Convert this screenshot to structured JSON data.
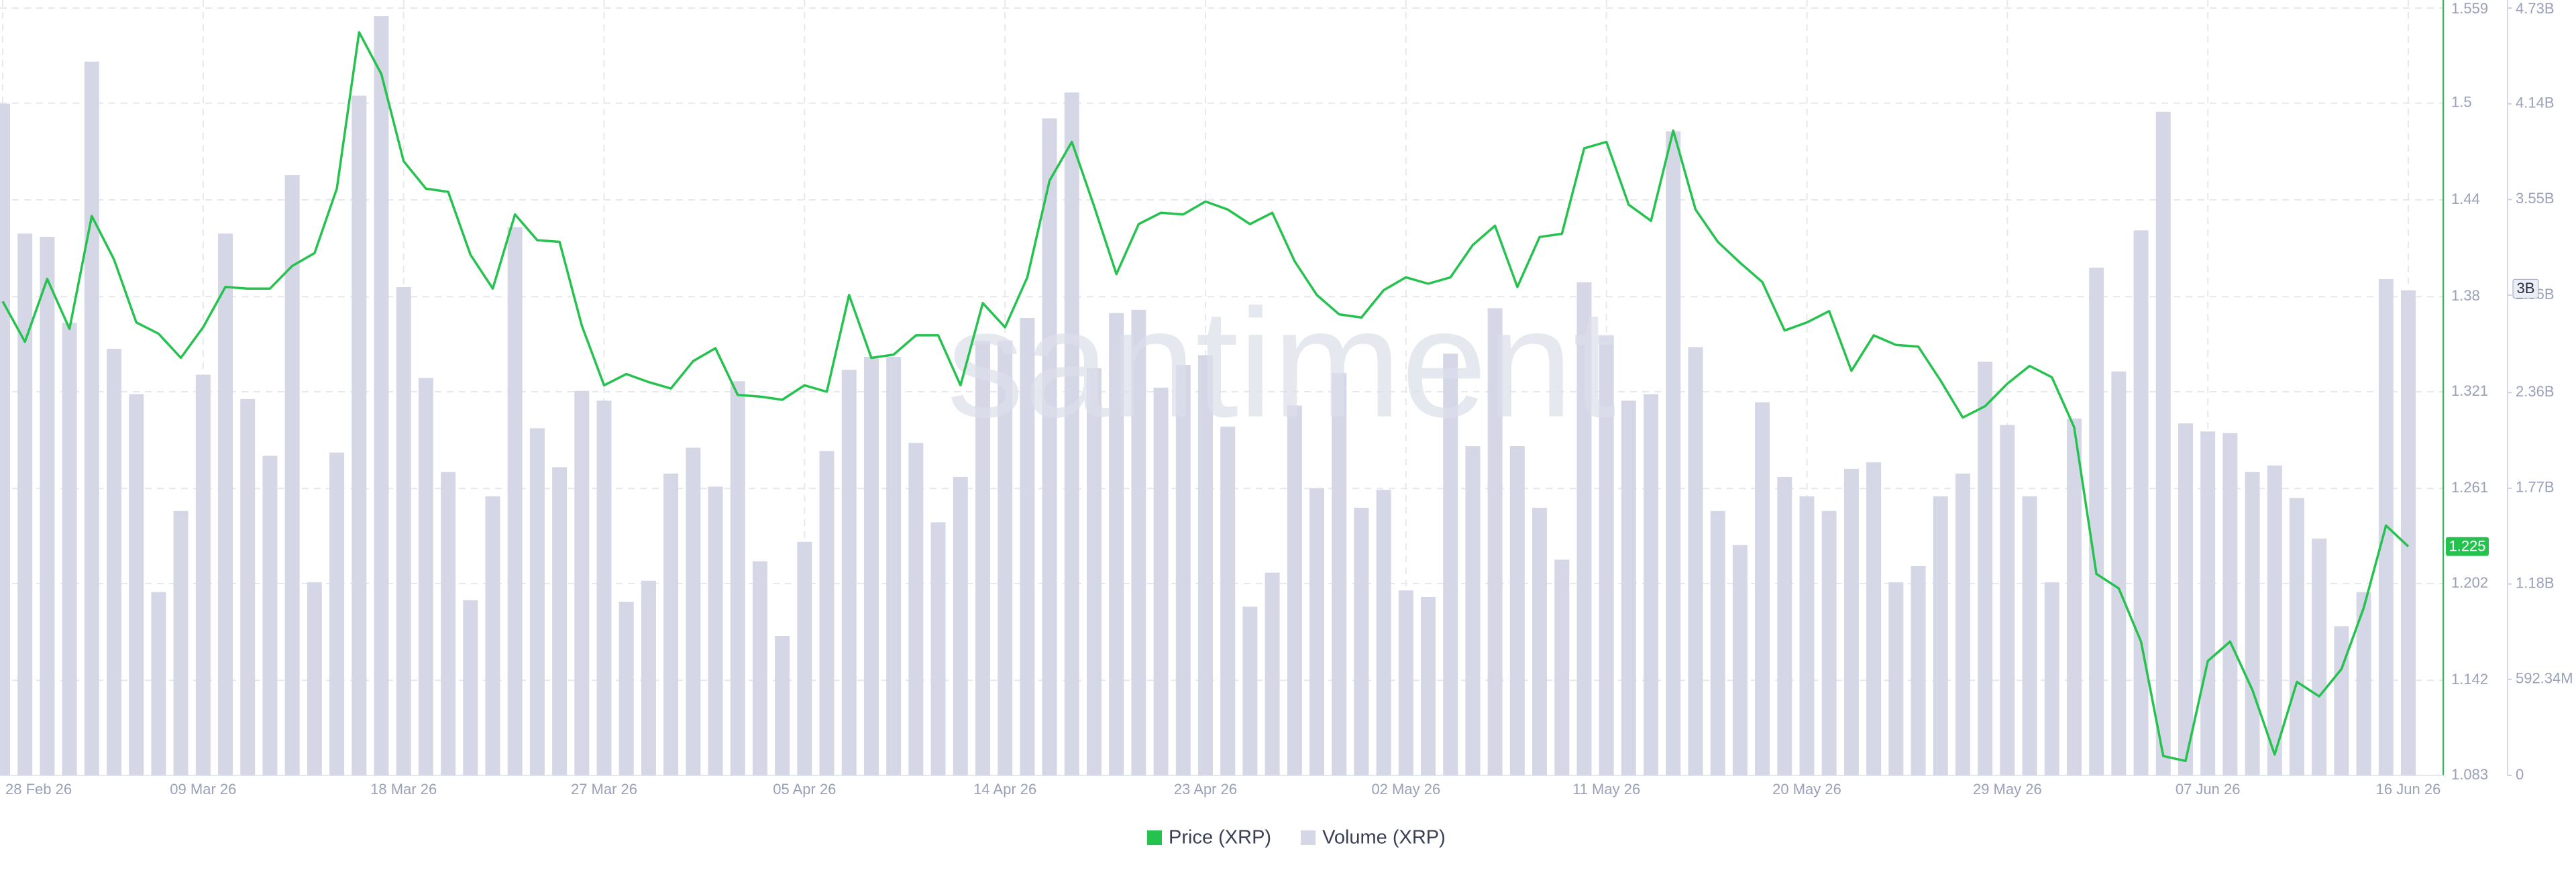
{
  "chart_data": {
    "type": "combo",
    "watermark": "santiment",
    "categories": [
      "28 Feb 26",
      null,
      null,
      null,
      null,
      null,
      null,
      null,
      null,
      "09 Mar 26",
      null,
      null,
      null,
      null,
      null,
      null,
      null,
      null,
      "18 Mar 26",
      null,
      null,
      null,
      null,
      null,
      null,
      null,
      null,
      "27 Mar 26",
      null,
      null,
      null,
      null,
      null,
      null,
      null,
      null,
      "05 Apr 26",
      null,
      null,
      null,
      null,
      null,
      null,
      null,
      null,
      "14 Apr 26",
      null,
      null,
      null,
      null,
      null,
      null,
      null,
      null,
      "23 Apr 26",
      null,
      null,
      null,
      null,
      null,
      null,
      null,
      null,
      "02 May 26",
      null,
      null,
      null,
      null,
      null,
      null,
      null,
      null,
      "11 May 26",
      null,
      null,
      null,
      null,
      null,
      null,
      null,
      null,
      "20 May 26",
      null,
      null,
      null,
      null,
      null,
      null,
      null,
      null,
      "29 May 26",
      null,
      null,
      null,
      null,
      null,
      null,
      null,
      null,
      "07 Jun 26",
      null,
      null,
      null,
      null,
      null,
      null,
      null,
      null,
      "16 Jun 26"
    ],
    "series": [
      {
        "name": "Volume (XRP)",
        "type": "bar",
        "axis": "y2",
        "color": "#d5d7e7",
        "values": [
          4140000000.0,
          3340000000.0,
          3320000000.0,
          2790000000.0,
          4400000000.0,
          2630000000.0,
          2350000000.0,
          1130000000.0,
          1630000000.0,
          2470000000.0,
          3340000000.0,
          2320000000.0,
          1970000000.0,
          3700000000.0,
          1190000000.0,
          1990000000.0,
          4190000000.0,
          4680000000.0,
          3010000000.0,
          2450000000.0,
          1870000000.0,
          1080000000.0,
          1720000000.0,
          3380000000.0,
          2140000000.0,
          1900000000.0,
          2370000000.0,
          2310000000.0,
          1070000000.0,
          1200000000.0,
          1860000000.0,
          2020000000.0,
          1780000000.0,
          2430000000.0,
          1320000000.0,
          860000000.0,
          1440000000.0,
          2000000000.0,
          2500000000.0,
          2580000000.0,
          2580000000.0,
          2050000000.0,
          1560000000.0,
          1840000000.0,
          2680000000.0,
          2680000000.0,
          2820000000.0,
          4050000000.0,
          4210000000.0,
          2510000000.0,
          2850000000.0,
          2870000000.0,
          2390000000.0,
          2530000000.0,
          2590000000.0,
          2150000000.0,
          1040000000.0,
          1250000000.0,
          2280000000.0,
          1770000000.0,
          2480000000.0,
          1650000000.0,
          1760000000.0,
          1140000000.0,
          1100000000.0,
          2600000000.0,
          2030000000.0,
          2880000000.0,
          2030000000.0,
          1650000000.0,
          1330000000.0,
          3040000000.0,
          2710000000.0,
          2310000000.0,
          2350000000.0,
          3970000000.0,
          2640000000.0,
          1630000000.0,
          1420000000.0,
          2300000000.0,
          1840000000.0,
          1720000000.0,
          1630000000.0,
          1890000000.0,
          1930000000.0,
          1190000000.0,
          1290000000.0,
          1720000000.0,
          1860000000.0,
          2550000000.0,
          2160000000.0,
          1720000000.0,
          1190000000.0,
          2200000000.0,
          3130000000.0,
          2490000000.0,
          3360000000.0,
          4090000000.0,
          2170000000.0,
          2120000000.0,
          2110000000.0,
          1870000000.0,
          1910000000.0,
          1710000000.0,
          1460000000.0,
          920000000.0,
          1130000000.0,
          3060000000.0,
          2990000000.0
        ]
      },
      {
        "name": "Price (XRP)",
        "type": "line",
        "color": "#26c24f",
        "values": [
          1.377,
          1.352,
          1.391,
          1.36,
          1.43,
          1.403,
          1.364,
          1.357,
          1.342,
          1.361,
          1.386,
          1.385,
          1.385,
          1.399,
          1.407,
          1.447,
          1.544,
          1.518,
          1.464,
          1.447,
          1.445,
          1.406,
          1.385,
          1.431,
          1.415,
          1.414,
          1.362,
          1.325,
          1.332,
          1.327,
          1.323,
          1.34,
          1.348,
          1.319,
          1.318,
          1.316,
          1.325,
          1.321,
          1.381,
          1.342,
          1.344,
          1.356,
          1.356,
          1.325,
          1.376,
          1.361,
          1.392,
          1.452,
          1.476,
          1.436,
          1.394,
          1.425,
          1.432,
          1.431,
          1.439,
          1.434,
          1.425,
          1.432,
          1.402,
          1.381,
          1.369,
          1.367,
          1.384,
          1.392,
          1.388,
          1.392,
          1.412,
          1.424,
          1.386,
          1.417,
          1.419,
          1.472,
          1.476,
          1.437,
          1.427,
          1.483,
          1.434,
          1.414,
          1.401,
          1.389,
          1.359,
          1.364,
          1.371,
          1.334,
          1.356,
          1.35,
          1.349,
          1.328,
          1.305,
          1.312,
          1.326,
          1.337,
          1.33,
          1.299,
          1.208,
          1.199,
          1.166,
          1.095,
          1.092,
          1.154,
          1.166,
          1.136,
          1.096,
          1.141,
          1.132,
          1.149,
          1.187,
          1.238,
          1.225
        ]
      }
    ],
    "ylim": [
      1.083,
      1.559
    ],
    "yticks": [
      1.083,
      1.142,
      1.202,
      1.261,
      1.321,
      1.38,
      1.44,
      1.5,
      1.559
    ],
    "y2lim": [
      0,
      4730000000.0
    ],
    "y2ticks": [
      0,
      {
        "value": 592340000.0,
        "label": "592.34M"
      },
      {
        "value": 1180000000.0,
        "label": "1.18B"
      },
      {
        "value": 1770000000.0,
        "label": "1.77B"
      },
      {
        "value": 2360000000.0,
        "label": "2.36B"
      },
      {
        "value": 2960000000.0,
        "label": "2.96B"
      },
      {
        "value": 3550000000.0,
        "label": "3.55B"
      },
      {
        "value": 4140000000.0,
        "label": "4.14B"
      },
      {
        "value": 4730000000.0,
        "label": "4.73B"
      }
    ],
    "last_price": 1.225,
    "last_volume": {
      "value": 3000000000.0,
      "label": "3B"
    },
    "grid": true,
    "legend": "bottom"
  }
}
